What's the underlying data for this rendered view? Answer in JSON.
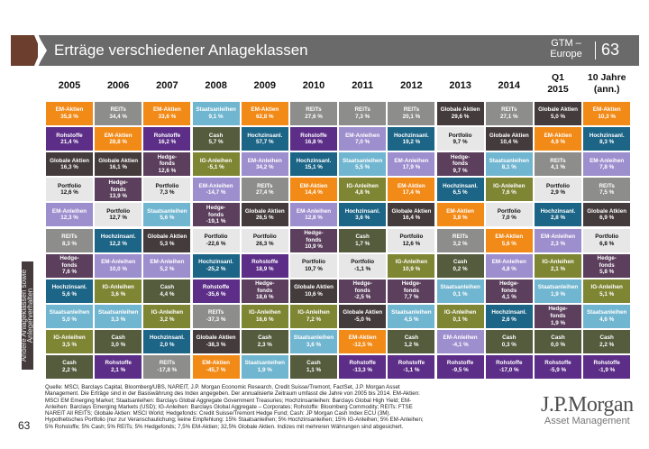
{
  "header": {
    "title": "Erträge verschiedener Anlageklassen",
    "gtm_label": "GTM –\nEurope",
    "page_number": "63"
  },
  "columns": [
    "2005",
    "2006",
    "2007",
    "2008",
    "2009",
    "2010",
    "2011",
    "2012",
    "2013",
    "2014",
    "Q1\n2015",
    "10 Jahre\n(ann.)"
  ],
  "asset_colors": {
    "EM-Aktien": "#f28a17",
    "REITs": "#8d8d8b",
    "Staatsanleihen": "#71b6d0",
    "Rohstoffe": "#5c2e88",
    "Cash": "#555b3d",
    "Globale Aktien": "#443b3c",
    "Globale Atkien": "#443b3c",
    "Hedgefonds": "#5b3f5d",
    "IG-Anleihen": "#7f8633",
    "Portfolio": "#e7e7e7",
    "EM-Anleihen": "#9d8ece",
    "Hochzinsanl.": "#1c6587"
  },
  "table": [
    [
      {
        "asset": "EM-Aktien",
        "label": "EM-Aktien",
        "value": "35,8 %"
      },
      {
        "asset": "Rohstoffe",
        "label": "Rohstoffe",
        "value": "21,4 %"
      },
      {
        "asset": "Globale Aktien",
        "label": "Globale Aktien",
        "value": "16,3 %"
      },
      {
        "asset": "Portfolio",
        "label": "Portfolio",
        "value": "12,6 %"
      },
      {
        "asset": "EM-Anleihen",
        "label": "EM-Anleihen",
        "value": "12,3 %"
      },
      {
        "asset": "REITs",
        "label": "REITs",
        "value": "8,3 %"
      },
      {
        "asset": "Hedgefonds",
        "label": "Hedge-\nfonds",
        "value": "7,6 %"
      },
      {
        "asset": "Hochzinsanl.",
        "label": "Hochzinsanl.",
        "value": "5,6 %"
      },
      {
        "asset": "Staatsanleihen",
        "label": "Staatsanleihen",
        "value": "5,0 %"
      },
      {
        "asset": "IG-Anleihen",
        "label": "IG-Anleihen",
        "value": "3,5 %"
      },
      {
        "asset": "Cash",
        "label": "Cash",
        "value": "2,2 %"
      }
    ],
    [
      {
        "asset": "REITs",
        "label": "REITs",
        "value": "34,4 %"
      },
      {
        "asset": "EM-Aktien",
        "label": "EM-Aktien",
        "value": "28,8 %"
      },
      {
        "asset": "Globale Aktien",
        "label": "Globale Aktien",
        "value": "16,1 %"
      },
      {
        "asset": "Hedgefonds",
        "label": "Hedge-\nfonds",
        "value": "13,9 %"
      },
      {
        "asset": "Portfolio",
        "label": "Portfolio",
        "value": "12,7 %"
      },
      {
        "asset": "Hochzinsanl.",
        "label": "Hochzinsanl.",
        "value": "12,2 %"
      },
      {
        "asset": "EM-Anleihen",
        "label": "EM-Anleihen",
        "value": "10,0 %"
      },
      {
        "asset": "IG-Anleihen",
        "label": "IG-Anleihen",
        "value": "3,6 %"
      },
      {
        "asset": "Staatsanleihen",
        "label": "Staatsanleihen",
        "value": "3,3 %"
      },
      {
        "asset": "Cash",
        "label": "Cash",
        "value": "3,0 %"
      },
      {
        "asset": "Rohstoffe",
        "label": "Rohstoffe",
        "value": "2,1 %"
      }
    ],
    [
      {
        "asset": "EM-Aktien",
        "label": "EM-Aktien",
        "value": "33,6 %"
      },
      {
        "asset": "Rohstoffe",
        "label": "Rohstoffe",
        "value": "16,2 %"
      },
      {
        "asset": "Hedgefonds",
        "label": "Hedge-\nfonds",
        "value": "12,6 %"
      },
      {
        "asset": "Portfolio",
        "label": "Portfolio",
        "value": "7,3 %"
      },
      {
        "asset": "Staatsanleihen",
        "label": "Staatsanleihen",
        "value": "5,6 %"
      },
      {
        "asset": "Globale Aktien",
        "label": "Globale Aktien",
        "value": "5,3 %"
      },
      {
        "asset": "EM-Anleihen",
        "label": "EM-Anleihen",
        "value": "5,2 %"
      },
      {
        "asset": "Cash",
        "label": "Cash",
        "value": "4,4 %"
      },
      {
        "asset": "IG-Anleihen",
        "label": "IG-Anleihen",
        "value": "3,2 %"
      },
      {
        "asset": "Hochzinsanl.",
        "label": "Hochzinsanl.",
        "value": "2,0 %"
      },
      {
        "asset": "REITs",
        "label": "REITs",
        "value": "-17,8 %"
      }
    ],
    [
      {
        "asset": "Staatsanleihen",
        "label": "Staatsanleihen",
        "value": "9,1 %"
      },
      {
        "asset": "Cash",
        "label": "Cash",
        "value": "5,7 %"
      },
      {
        "asset": "IG-Anleihen",
        "label": "IG-Anleihen",
        "value": "-5,1 %"
      },
      {
        "asset": "EM-Anleihen",
        "label": "EM-Anleihen",
        "value": "-14,7 %"
      },
      {
        "asset": "Hedgefonds",
        "label": "Hedge-\nfonds",
        "value": "-19,1 %"
      },
      {
        "asset": "Portfolio",
        "label": "Portfolio",
        "value": "-22,6 %"
      },
      {
        "asset": "Hochzinsanl.",
        "label": "Hochzinsanl.",
        "value": "-25,2 %"
      },
      {
        "asset": "Rohstoffe",
        "label": "Rohstoffe",
        "value": "-35,6 %"
      },
      {
        "asset": "REITs",
        "label": "REITs",
        "value": "-37,3 %"
      },
      {
        "asset": "Globale Aktien",
        "label": "Globale Aktien",
        "value": "-38,3 %"
      },
      {
        "asset": "EM-Aktien",
        "label": "EM-Aktien",
        "value": "-45,7 %"
      }
    ],
    [
      {
        "asset": "EM-Aktien",
        "label": "EM-Aktien",
        "value": "62,8 %"
      },
      {
        "asset": "Hochzinsanl.",
        "label": "Hochzinsanl.",
        "value": "57,7 %"
      },
      {
        "asset": "EM-Anleihen",
        "label": "EM-Anleihen",
        "value": "34,2 %"
      },
      {
        "asset": "REITs",
        "label": "REITs",
        "value": "27,4 %"
      },
      {
        "asset": "Globale Aktien",
        "label": "Globale Aktien",
        "value": "26,5 %"
      },
      {
        "asset": "Portfolio",
        "label": "Portfolio",
        "value": "26,3 %"
      },
      {
        "asset": "Rohstoffe",
        "label": "Rohstoffe",
        "value": "18,9 %"
      },
      {
        "asset": "Hedgefonds",
        "label": "Hedge-\nfonds",
        "value": "18,6 %"
      },
      {
        "asset": "IG-Anleihen",
        "label": "IG-Anleihen",
        "value": "16,6 %"
      },
      {
        "asset": "Cash",
        "label": "Cash",
        "value": "2,3 %"
      },
      {
        "asset": "Staatsanleihen",
        "label": "Staatsanleihen",
        "value": "1,9 %"
      }
    ],
    [
      {
        "asset": "REITs",
        "label": "REITs",
        "value": "27,6 %"
      },
      {
        "asset": "Rohstoffe",
        "label": "Rohstoffe",
        "value": "16,8 %"
      },
      {
        "asset": "Hochzinsanl.",
        "label": "Hochzinsanl.",
        "value": "15,1 %"
      },
      {
        "asset": "EM-Aktien",
        "label": "EM-Aktien",
        "value": "14,4 %"
      },
      {
        "asset": "EM-Anleihen",
        "label": "EM-Anleihen",
        "value": "12,8 %"
      },
      {
        "asset": "Hedgefonds",
        "label": "Hedge-\nfonds",
        "value": "10,9 %"
      },
      {
        "asset": "Portfolio",
        "label": "Portfolio",
        "value": "10,7 %"
      },
      {
        "asset": "Globale Aktien",
        "label": "Globale Aktien",
        "value": "10,6 %"
      },
      {
        "asset": "IG-Anleihen",
        "label": "IG-Anleihen",
        "value": "7,2 %"
      },
      {
        "asset": "Staatsanleihen",
        "label": "Staatsanleihen",
        "value": "3,6 %"
      },
      {
        "asset": "Cash",
        "label": "Cash",
        "value": "1,1 %"
      }
    ],
    [
      {
        "asset": "REITs",
        "label": "REITs",
        "value": "7,3 %"
      },
      {
        "asset": "EM-Anleihen",
        "label": "EM-Anleihen",
        "value": "7,0 %"
      },
      {
        "asset": "Staatsanleihen",
        "label": "Staatsanleihen",
        "value": "5,5 %"
      },
      {
        "asset": "IG-Anleihen",
        "label": "IG-Anleihen",
        "value": "4,8 %"
      },
      {
        "asset": "Hochzinsanl.",
        "label": "Hochzinsanl.",
        "value": "3,6 %"
      },
      {
        "asset": "Cash",
        "label": "Cash",
        "value": "1,7 %"
      },
      {
        "asset": "Portfolio",
        "label": "Portfolio",
        "value": "-1,1 %"
      },
      {
        "asset": "Hedgefonds",
        "label": "Hedge-\nfonds",
        "value": "-2,5 %"
      },
      {
        "asset": "Globale Aktien",
        "label": "Globale Aktien",
        "value": "-5,0 %"
      },
      {
        "asset": "EM-Aktien",
        "label": "EM-Aktien",
        "value": "-12,5 %"
      },
      {
        "asset": "Rohstoffe",
        "label": "Rohstoffe",
        "value": "-13,3 %"
      }
    ],
    [
      {
        "asset": "REITs",
        "label": "REITs",
        "value": "20,1 %"
      },
      {
        "asset": "Hochzinsanl.",
        "label": "Hochzinsanl.",
        "value": "19,2 %"
      },
      {
        "asset": "EM-Anleihen",
        "label": "EM-Anleihen",
        "value": "17,9 %"
      },
      {
        "asset": "EM-Aktien",
        "label": "EM-Aktien",
        "value": "17,4 %"
      },
      {
        "asset": "Globale Aktien",
        "label": "Globale Aktien",
        "value": "16,4 %"
      },
      {
        "asset": "Portfolio",
        "label": "Portfolio",
        "value": "12,6 %"
      },
      {
        "asset": "IG-Anleihen",
        "label": "IG-Anleihen",
        "value": "10,9 %"
      },
      {
        "asset": "Hedgefonds",
        "label": "Hedge-\nfonds",
        "value": "7,7 %"
      },
      {
        "asset": "Staatsanleihen",
        "label": "Staatsanleihen",
        "value": "4,5 %"
      },
      {
        "asset": "Cash",
        "label": "Cash",
        "value": "1,2 %"
      },
      {
        "asset": "Rohstoffe",
        "label": "Rohstoffe",
        "value": "-1,1 %"
      }
    ],
    [
      {
        "asset": "Globale Aktien",
        "label": "Globale Aktien",
        "value": "29,6 %"
      },
      {
        "asset": "Portfolio",
        "label": "Portfolio",
        "value": "9,7 %"
      },
      {
        "asset": "Hedgefonds",
        "label": "Hedge-\nfonds",
        "value": "9,7 %"
      },
      {
        "asset": "Hochzinsanl.",
        "label": "Hochzinsanl.",
        "value": "6,5 %"
      },
      {
        "asset": "EM-Aktien",
        "label": "EM-Aktien",
        "value": "3,8 %"
      },
      {
        "asset": "REITs",
        "label": "REITs",
        "value": "3,2 %"
      },
      {
        "asset": "Cash",
        "label": "Cash",
        "value": "0,2 %"
      },
      {
        "asset": "Staatsanleihen",
        "label": "Staatsanleihen",
        "value": "0,1 %"
      },
      {
        "asset": "IG-Anleihen",
        "label": "IG-Anleihen",
        "value": "0,1 %"
      },
      {
        "asset": "EM-Anleihen",
        "label": "EM-Anleihen",
        "value": "-4,1 %"
      },
      {
        "asset": "Rohstoffe",
        "label": "Rohstoffe",
        "value": "-9,5 %"
      }
    ],
    [
      {
        "asset": "REITs",
        "label": "REITs",
        "value": "27,1 %"
      },
      {
        "asset": "Globale Aktien",
        "label": "Globale Aktien",
        "value": "10,4 %"
      },
      {
        "asset": "Staatsanleihen",
        "label": "Staatsanleihen",
        "value": "8,1 %"
      },
      {
        "asset": "IG-Anleihen",
        "label": "IG-Anleihen",
        "value": "7,6 %"
      },
      {
        "asset": "Portfolio",
        "label": "Portfolio",
        "value": "7,0 %"
      },
      {
        "asset": "EM-Aktien",
        "label": "EM-Aktien",
        "value": "5,6 %"
      },
      {
        "asset": "EM-Anleihen",
        "label": "EM-Anleihen",
        "value": "4,8 %"
      },
      {
        "asset": "Hedgefonds",
        "label": "Hedge-\nfonds",
        "value": "4,1 %"
      },
      {
        "asset": "Hochzinsanl.",
        "label": "Hochzinsanl.",
        "value": "2,6 %"
      },
      {
        "asset": "Cash",
        "label": "Cash",
        "value": "0,3 %"
      },
      {
        "asset": "Rohstoffe",
        "label": "Rohstoffe",
        "value": "-17,0 %"
      }
    ],
    [
      {
        "asset": "Globale Aktien",
        "label": "Globale Aktien",
        "value": "5,0 %"
      },
      {
        "asset": "EM-Aktien",
        "label": "EM-Aktien",
        "value": "4,9 %"
      },
      {
        "asset": "REITs",
        "label": "REITs",
        "value": "4,1 %"
      },
      {
        "asset": "Portfolio",
        "label": "Portfolio",
        "value": "2,9 %"
      },
      {
        "asset": "Hochzinsanl.",
        "label": "Hochzinsanl.",
        "value": "2,8 %"
      },
      {
        "asset": "EM-Anleihen",
        "label": "EM-Anleihen",
        "value": "2,3 %"
      },
      {
        "asset": "IG-Anleihen",
        "label": "IG-Anleihen",
        "value": "2,1 %"
      },
      {
        "asset": "Staatsanleihen",
        "label": "Staatsanleihen",
        "value": "1,9 %"
      },
      {
        "asset": "Hedgefonds",
        "label": "Hedge-\nfonds",
        "value": "1,9 %"
      },
      {
        "asset": "Cash",
        "label": "Cash",
        "value": "0,0 %"
      },
      {
        "asset": "Rohstoffe",
        "label": "Rohstoffe",
        "value": "-5,9 %"
      }
    ],
    [
      {
        "asset": "EM-Aktien",
        "label": "EM-Aktien",
        "value": "10,3 %"
      },
      {
        "asset": "Hochzinsanl.",
        "label": "Hochzinsanl.",
        "value": "8,3 %"
      },
      {
        "asset": "EM-Anleihen",
        "label": "EM-Anleihen",
        "value": "7,8 %"
      },
      {
        "asset": "REITs",
        "label": "REITs",
        "value": "7,5 %"
      },
      {
        "asset": "Globale Atkien",
        "label": "Globale Atkien",
        "value": "6,9 %"
      },
      {
        "asset": "Portfolio",
        "label": "Portfolio",
        "value": "6,8 %"
      },
      {
        "asset": "Hedgefonds",
        "label": "Hedge-\nfonds",
        "value": "5,8 %"
      },
      {
        "asset": "IG-Anleihen",
        "label": "IG-Anleihen",
        "value": "5,1 %"
      },
      {
        "asset": "Staatsanleihen",
        "label": "Staatsanleihen",
        "value": "4,6 %"
      },
      {
        "asset": "Cash",
        "label": "Cash",
        "value": "2,2 %"
      },
      {
        "asset": "Rohstoffe",
        "label": "Rohstoffe",
        "value": "-1,9 %"
      }
    ]
  ],
  "sidebar": {
    "label": "Andere Anlageklassen sowie Anlegerverhalten"
  },
  "footnote": "Quelle: MSCI, Barclays Capital, Bloomberg/UBS, NAREIT, J.P. Morgan Economic Research, Credit Suisse/Tremont, FactSet, J.P. Morgan Asset Management. Die Erträge sind in der Basiswährung des Index angegeben. Der annualisierte Zeitraum umfasst die Jahre von 2005 bis 2014. EM-Aktien: MSCI EM Emerging Market; Staatsanleihen: Barclays Global Aggregate Government Treasuries; Hochzinsanleihen: Barclays Global High Yield; EM-Anleihen: Barclays Emerging Markets (USD); IG-Anleihen: Barclays Global Aggregate – Corporates; Rohstoffe: Bloomberg Commodity; REITs: FTSE NAREIT All REITS; Globale Aktien: MSCI World; Hedgefonds: Credit Suisse/Tremont Hedge Fund; Cash: JP Morgan Cash Index ECU (3M). Hypothetisches Portfolio (nur zur Veranschaulichung; keine Empfehlung: 15% Staatsanleihen; 5% Hochzinsanleihen; 15% IG-Anleihen; 5% EM-Anleihen; 5% Rohstoffe; 5% Cash; 5% REITs; 5% Hedgefonds; 7,5% EM-Aktien; 32,5% Globale Aktien. Indizes mit mehreren Währungen sind abgesichert.",
  "footer": {
    "page_number": "63",
    "logo_line1": "J.P.Morgan",
    "logo_line2": "Asset Management"
  }
}
